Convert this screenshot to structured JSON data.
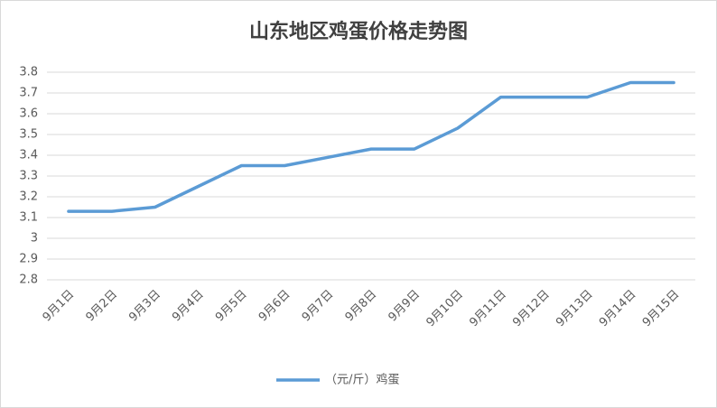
{
  "chart_data": {
    "type": "line",
    "title": "山东地区鸡蛋价格走势图",
    "categories": [
      "9月1日",
      "9月2日",
      "9月3日",
      "9月4日",
      "9月5日",
      "9月6日",
      "9月7日",
      "9月8日",
      "9月9日",
      "9月10日",
      "9月11日",
      "9月12日",
      "9月13日",
      "9月14日",
      "9月15日"
    ],
    "series": [
      {
        "name": "（元/斤）鸡蛋",
        "color": "#5b9bd5",
        "values": [
          3.13,
          3.13,
          3.15,
          3.25,
          3.35,
          3.35,
          3.39,
          3.43,
          3.43,
          3.53,
          3.68,
          3.68,
          3.68,
          3.75,
          3.75
        ]
      }
    ],
    "ylim": [
      2.8,
      3.8
    ],
    "yticks": [
      2.8,
      2.9,
      3,
      3.1,
      3.2,
      3.3,
      3.4,
      3.5,
      3.6,
      3.7,
      3.8
    ],
    "grid": true,
    "legend": "bottom"
  }
}
